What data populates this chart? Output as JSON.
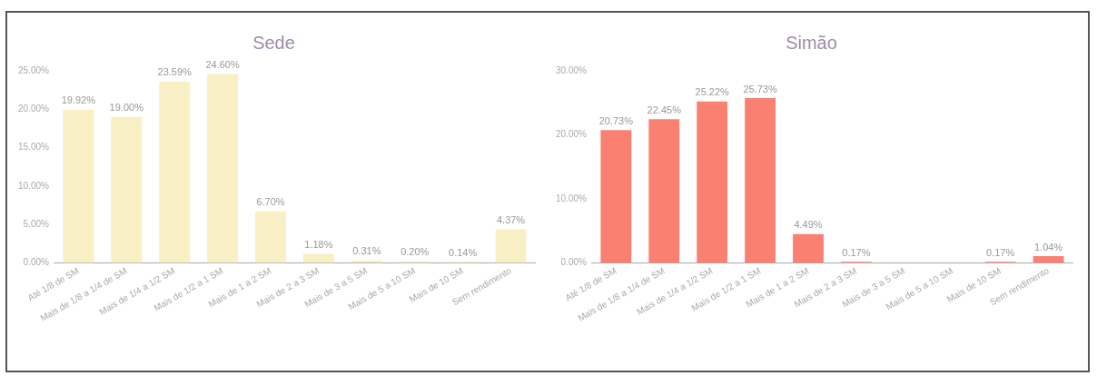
{
  "chart_data": [
    {
      "type": "bar",
      "title": "Sede",
      "categories": [
        "Até 1/8 de SM",
        "Mais de 1/8 a 1/4 de SM",
        "Mais de 1/4 a 1/2 SM",
        "Mais de 1/2 a 1 SM",
        "Mais de 1 a 2 SM",
        "Mais de 2 a 3 SM",
        "Mais de 3 a 5 SM",
        "Mais de 5 a 10 SM",
        "Mais de 10 SM",
        "Sem rendimento"
      ],
      "values": [
        19.92,
        19.0,
        23.59,
        24.6,
        6.7,
        1.18,
        0.31,
        0.2,
        0.14,
        4.37
      ],
      "value_labels": [
        "19.92%",
        "19.00%",
        "23.59%",
        "24.60%",
        "6.70%",
        "1.18%",
        "0.31%",
        "0.20%",
        "0.14%",
        "4.37%"
      ],
      "color": "#f8f0c4",
      "ylim": [
        0,
        25
      ],
      "yticks": [
        {
          "value": 0,
          "label": "0.00%"
        },
        {
          "value": 5,
          "label": "5.00%"
        },
        {
          "value": 10,
          "label": "10.00%"
        },
        {
          "value": 15,
          "label": "15.00%"
        },
        {
          "value": 20,
          "label": "20.00%"
        },
        {
          "value": 25,
          "label": "25.00%"
        }
      ],
      "grid": false
    },
    {
      "type": "bar",
      "title": "Simão",
      "categories": [
        "Até 1/8 de SM",
        "Mais de 1/8 a 1/4 de SM",
        "Mais de 1/4 a 1/2 SM",
        "Mais de 1/2 a 1 SM",
        "Mais de 1 a 2 SM",
        "Mais de 2 a 3 SM",
        "Mais de 3 a 5 SM",
        "Mais de 5 a 10 SM",
        "Mais de 10 SM",
        "Sem rendimento"
      ],
      "values": [
        20.73,
        22.45,
        25.22,
        25.73,
        4.49,
        0.17,
        null,
        null,
        0.17,
        1.04
      ],
      "value_labels": [
        "20.73%",
        "22.45%",
        "25.22%",
        "25.73%",
        "4.49%",
        "0.17%",
        null,
        null,
        "0.17%",
        "1.04%"
      ],
      "color": "#fa8072",
      "ylim": [
        0,
        30
      ],
      "yticks": [
        {
          "value": 0,
          "label": "0.00%"
        },
        {
          "value": 10,
          "label": "10.00%"
        },
        {
          "value": 20,
          "label": "20.00%"
        },
        {
          "value": 30,
          "label": "30.00%"
        }
      ],
      "grid": false
    }
  ]
}
